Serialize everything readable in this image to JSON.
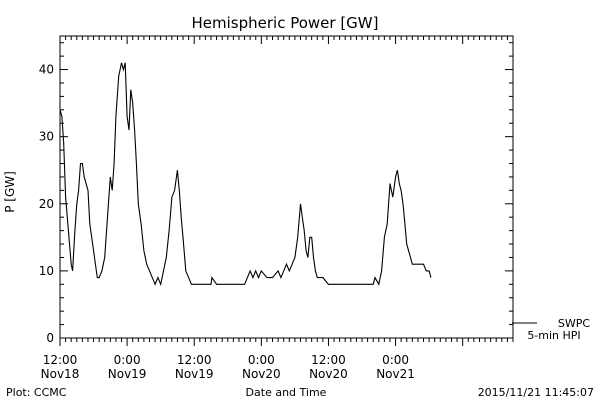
{
  "chart_data": {
    "type": "line",
    "title": "Hemispheric Power [GW]",
    "ylabel": "P [GW]",
    "xlabel": "Date and Time",
    "ylim": [
      0,
      45
    ],
    "xlim": [
      "2015-11-18T12:00",
      "2015-11-21T21:00"
    ],
    "y_ticks": [
      0,
      10,
      20,
      30,
      40
    ],
    "x_ticks": [
      {
        "x": "2015-11-18T12:00",
        "label1": "12:00",
        "label2": "Nov18"
      },
      {
        "x": "2015-11-19T00:00",
        "label1": "0:00",
        "label2": "Nov19"
      },
      {
        "x": "2015-11-19T12:00",
        "label1": "12:00",
        "label2": "Nov19"
      },
      {
        "x": "2015-11-20T00:00",
        "label1": "0:00",
        "label2": "Nov20"
      },
      {
        "x": "2015-11-20T12:00",
        "label1": "12:00",
        "label2": "Nov20"
      },
      {
        "x": "2015-11-21T00:00",
        "label1": "0:00",
        "label2": "Nov21"
      }
    ],
    "legend": {
      "line1": "SWPC",
      "line2": "5-min HPI",
      "placement": "bottom-right"
    },
    "series": [
      {
        "name": "SWPC",
        "color": "#000000",
        "points": [
          [
            "2015-11-18T12:00",
            34
          ],
          [
            "2015-11-18T12:20",
            33
          ],
          [
            "2015-11-18T12:40",
            29
          ],
          [
            "2015-11-18T13:00",
            21
          ],
          [
            "2015-11-18T13:30",
            16
          ],
          [
            "2015-11-18T14:00",
            11
          ],
          [
            "2015-11-18T14:15",
            10
          ],
          [
            "2015-11-18T14:40",
            16
          ],
          [
            "2015-11-18T15:00",
            20
          ],
          [
            "2015-11-18T15:20",
            22
          ],
          [
            "2015-11-18T15:40",
            26
          ],
          [
            "2015-11-18T16:00",
            26
          ],
          [
            "2015-11-18T16:20",
            24
          ],
          [
            "2015-11-18T16:40",
            23
          ],
          [
            "2015-11-18T17:00",
            22
          ],
          [
            "2015-11-18T17:20",
            17
          ],
          [
            "2015-11-18T17:40",
            15
          ],
          [
            "2015-11-18T18:00",
            13
          ],
          [
            "2015-11-18T18:20",
            11
          ],
          [
            "2015-11-18T18:40",
            9
          ],
          [
            "2015-11-18T19:00",
            9
          ],
          [
            "2015-11-18T19:30",
            10
          ],
          [
            "2015-11-18T20:00",
            12
          ],
          [
            "2015-11-18T20:30",
            18
          ],
          [
            "2015-11-18T21:00",
            24
          ],
          [
            "2015-11-18T21:20",
            22
          ],
          [
            "2015-11-18T21:40",
            26
          ],
          [
            "2015-11-18T22:00",
            33
          ],
          [
            "2015-11-18T22:30",
            39
          ],
          [
            "2015-11-18T23:00",
            41
          ],
          [
            "2015-11-18T23:20",
            40
          ],
          [
            "2015-11-18T23:40",
            41
          ],
          [
            "2015-11-19T00:00",
            33
          ],
          [
            "2015-11-19T00:20",
            31
          ],
          [
            "2015-11-19T00:40",
            37
          ],
          [
            "2015-11-19T01:00",
            35
          ],
          [
            "2015-11-19T01:20",
            31
          ],
          [
            "2015-11-19T01:40",
            26
          ],
          [
            "2015-11-19T02:00",
            20
          ],
          [
            "2015-11-19T02:30",
            17
          ],
          [
            "2015-11-19T03:00",
            13
          ],
          [
            "2015-11-19T03:30",
            11
          ],
          [
            "2015-11-19T04:00",
            10
          ],
          [
            "2015-11-19T04:30",
            9
          ],
          [
            "2015-11-19T05:00",
            8
          ],
          [
            "2015-11-19T05:30",
            9
          ],
          [
            "2015-11-19T06:00",
            8
          ],
          [
            "2015-11-19T06:30",
            10
          ],
          [
            "2015-11-19T07:00",
            12
          ],
          [
            "2015-11-19T07:30",
            16
          ],
          [
            "2015-11-19T08:00",
            21
          ],
          [
            "2015-11-19T08:30",
            22
          ],
          [
            "2015-11-19T09:00",
            25
          ],
          [
            "2015-11-19T09:20",
            22
          ],
          [
            "2015-11-19T09:40",
            18
          ],
          [
            "2015-11-19T10:00",
            15
          ],
          [
            "2015-11-19T10:30",
            10
          ],
          [
            "2015-11-19T11:00",
            9
          ],
          [
            "2015-11-19T11:30",
            8
          ],
          [
            "2015-11-19T12:00",
            8
          ],
          [
            "2015-11-19T15:00",
            8
          ],
          [
            "2015-11-19T15:10",
            9
          ],
          [
            "2015-11-19T16:00",
            8
          ],
          [
            "2015-11-19T18:00",
            8
          ],
          [
            "2015-11-19T21:00",
            8
          ],
          [
            "2015-11-19T21:30",
            9
          ],
          [
            "2015-11-19T22:00",
            10
          ],
          [
            "2015-11-19T22:30",
            9
          ],
          [
            "2015-11-19T23:00",
            10
          ],
          [
            "2015-11-19T23:30",
            9
          ],
          [
            "2015-11-20T00:00",
            10
          ],
          [
            "2015-11-20T01:00",
            9
          ],
          [
            "2015-11-20T02:00",
            9
          ],
          [
            "2015-11-20T03:00",
            10
          ],
          [
            "2015-11-20T03:30",
            9
          ],
          [
            "2015-11-20T04:00",
            10
          ],
          [
            "2015-11-20T04:30",
            11
          ],
          [
            "2015-11-20T05:00",
            10
          ],
          [
            "2015-11-20T05:30",
            11
          ],
          [
            "2015-11-20T06:00",
            12
          ],
          [
            "2015-11-20T06:30",
            15
          ],
          [
            "2015-11-20T07:00",
            20
          ],
          [
            "2015-11-20T07:20",
            18
          ],
          [
            "2015-11-20T07:40",
            16
          ],
          [
            "2015-11-20T08:00",
            13
          ],
          [
            "2015-11-20T08:20",
            12
          ],
          [
            "2015-11-20T08:40",
            15
          ],
          [
            "2015-11-20T09:00",
            15
          ],
          [
            "2015-11-20T09:20",
            12
          ],
          [
            "2015-11-20T09:40",
            10
          ],
          [
            "2015-11-20T10:00",
            9
          ],
          [
            "2015-11-20T11:00",
            9
          ],
          [
            "2015-11-20T12:00",
            8
          ],
          [
            "2015-11-20T20:00",
            8
          ],
          [
            "2015-11-20T20:20",
            9
          ],
          [
            "2015-11-20T21:00",
            8
          ],
          [
            "2015-11-20T21:30",
            10
          ],
          [
            "2015-11-20T22:00",
            15
          ],
          [
            "2015-11-20T22:30",
            17
          ],
          [
            "2015-11-20T23:00",
            23
          ],
          [
            "2015-11-20T23:30",
            21
          ],
          [
            "2015-11-21T00:00",
            24
          ],
          [
            "2015-11-21T00:20",
            25
          ],
          [
            "2015-11-21T00:40",
            23
          ],
          [
            "2015-11-21T01:00",
            22
          ],
          [
            "2015-11-21T01:20",
            20
          ],
          [
            "2015-11-21T01:40",
            17
          ],
          [
            "2015-11-21T02:00",
            14
          ],
          [
            "2015-11-21T02:20",
            13
          ],
          [
            "2015-11-21T02:40",
            12
          ],
          [
            "2015-11-21T03:00",
            11
          ],
          [
            "2015-11-21T04:00",
            11
          ],
          [
            "2015-11-21T05:00",
            11
          ],
          [
            "2015-11-21T05:30",
            10
          ],
          [
            "2015-11-21T06:00",
            10
          ],
          [
            "2015-11-21T06:20",
            9
          ]
        ]
      },
      {
        "name": "5-min HPI",
        "color": "#000000",
        "points": []
      }
    ],
    "grid": false
  },
  "footer": {
    "left": "Plot: CCMC",
    "center": "Date and Time",
    "right": "2015/11/21 11:45:07"
  }
}
